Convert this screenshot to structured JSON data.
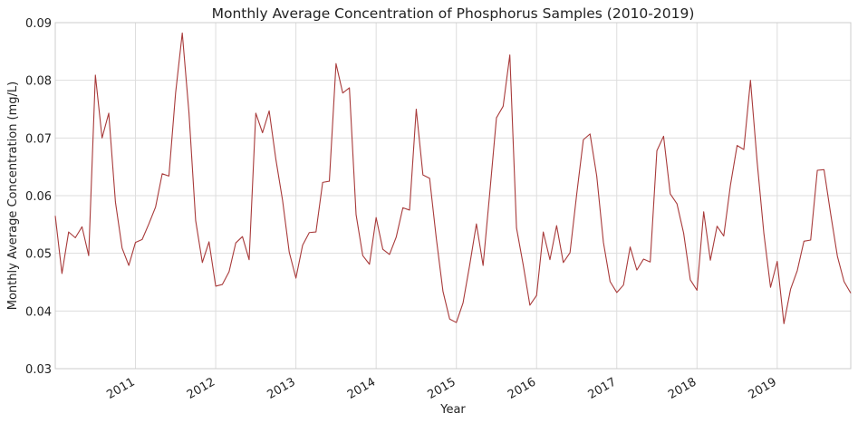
{
  "chart_data": {
    "type": "line",
    "title": "Monthly Average Concentration of Phosphorus Samples (2010-2019)",
    "xlabel": "Year",
    "ylabel": "Monthly Average Concentration (mg/L)",
    "xlim": [
      "2010-01",
      "2019-12"
    ],
    "ylim": [
      0.03,
      0.09
    ],
    "yticks": [
      0.03,
      0.04,
      0.05,
      0.06,
      0.07,
      0.08,
      0.09
    ],
    "ytick_labels": [
      "0.03",
      "0.04",
      "0.05",
      "0.06",
      "0.07",
      "0.08",
      "0.09"
    ],
    "xtick_labels": [
      "2011",
      "2012",
      "2013",
      "2014",
      "2015",
      "2016",
      "2017",
      "2018",
      "2019"
    ],
    "grid": true,
    "series": [
      {
        "color": "#a83a3a",
        "x": [
          "2010-01",
          "2010-02",
          "2010-03",
          "2010-04",
          "2010-05",
          "2010-06",
          "2010-07",
          "2010-08",
          "2010-09",
          "2010-10",
          "2010-11",
          "2010-12",
          "2011-01",
          "2011-02",
          "2011-03",
          "2011-04",
          "2011-05",
          "2011-06",
          "2011-07",
          "2011-08",
          "2011-09",
          "2011-10",
          "2011-11",
          "2011-12",
          "2012-01",
          "2012-02",
          "2012-03",
          "2012-04",
          "2012-05",
          "2012-06",
          "2012-07",
          "2012-08",
          "2012-09",
          "2012-10",
          "2012-11",
          "2012-12",
          "2013-01",
          "2013-02",
          "2013-03",
          "2013-04",
          "2013-05",
          "2013-06",
          "2013-07",
          "2013-08",
          "2013-09",
          "2013-10",
          "2013-11",
          "2013-12",
          "2014-01",
          "2014-02",
          "2014-03",
          "2014-04",
          "2014-05",
          "2014-06",
          "2014-07",
          "2014-08",
          "2014-09",
          "2014-10",
          "2014-11",
          "2014-12",
          "2015-01",
          "2015-02",
          "2015-03",
          "2015-04",
          "2015-05",
          "2015-06",
          "2015-07",
          "2015-08",
          "2015-09",
          "2015-10",
          "2015-11",
          "2015-12",
          "2016-01",
          "2016-02",
          "2016-03",
          "2016-04",
          "2016-05",
          "2016-06",
          "2016-07",
          "2016-08",
          "2016-09",
          "2016-10",
          "2016-11",
          "2016-12",
          "2017-01",
          "2017-02",
          "2017-03",
          "2017-04",
          "2017-05",
          "2017-06",
          "2017-07",
          "2017-08",
          "2017-09",
          "2017-10",
          "2017-11",
          "2017-12",
          "2018-01",
          "2018-02",
          "2018-03",
          "2018-04",
          "2018-05",
          "2018-06",
          "2018-07",
          "2018-08",
          "2018-09",
          "2018-10",
          "2018-11",
          "2018-12",
          "2019-01",
          "2019-02",
          "2019-03",
          "2019-04",
          "2019-05",
          "2019-06",
          "2019-07",
          "2019-08",
          "2019-09",
          "2019-10",
          "2019-11",
          "2019-12"
        ],
        "values": [
          0.0565,
          0.0465,
          0.0537,
          0.0527,
          0.0546,
          0.0496,
          0.0809,
          0.07,
          0.0743,
          0.0589,
          0.0509,
          0.0479,
          0.0519,
          0.0524,
          0.0551,
          0.058,
          0.0638,
          0.0634,
          0.0778,
          0.0882,
          0.0744,
          0.0557,
          0.0484,
          0.052,
          0.0443,
          0.0446,
          0.0468,
          0.0518,
          0.0529,
          0.0489,
          0.0743,
          0.0709,
          0.0747,
          0.0663,
          0.0592,
          0.0502,
          0.0457,
          0.0514,
          0.0536,
          0.0537,
          0.0623,
          0.0625,
          0.0829,
          0.0778,
          0.0787,
          0.0567,
          0.0496,
          0.0481,
          0.0562,
          0.0507,
          0.0498,
          0.0528,
          0.0579,
          0.0575,
          0.075,
          0.0636,
          0.063,
          0.0526,
          0.0434,
          0.0386,
          0.038,
          0.0414,
          0.048,
          0.0551,
          0.0479,
          0.0605,
          0.0735,
          0.0755,
          0.0844,
          0.0544,
          0.048,
          0.041,
          0.0427,
          0.0537,
          0.0489,
          0.0548,
          0.0484,
          0.0501,
          0.0602,
          0.0697,
          0.0707,
          0.0634,
          0.0519,
          0.0451,
          0.0432,
          0.0445,
          0.0511,
          0.0471,
          0.049,
          0.0485,
          0.0678,
          0.0703,
          0.0603,
          0.0586,
          0.0535,
          0.0454,
          0.0436,
          0.0572,
          0.0488,
          0.0547,
          0.053,
          0.0618,
          0.0687,
          0.068,
          0.08,
          0.0658,
          0.0535,
          0.0441,
          0.0486,
          0.0378,
          0.0438,
          0.047,
          0.0521,
          0.0523,
          0.0644,
          0.0645,
          0.0568,
          0.0495,
          0.0451,
          0.0431
        ]
      }
    ]
  }
}
